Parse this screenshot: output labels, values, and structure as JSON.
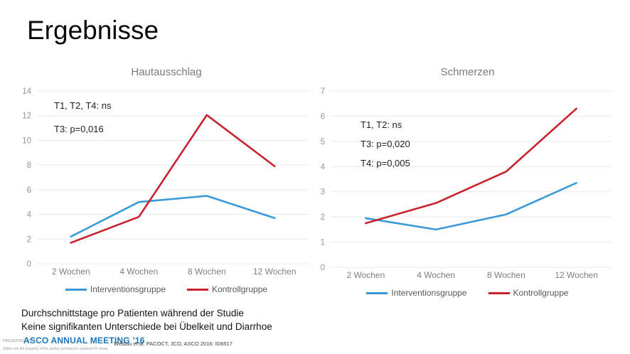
{
  "slide": {
    "title": "Ergebnisse",
    "notes": [
      "Durchschnittstage pro Patienten während der Studie",
      "Keine signifikanten Unterschiede bei Übelkeit und Diarrhoe"
    ]
  },
  "footer": {
    "presented_at_label": "PRESENTED AT:",
    "meeting_name": "ASCO ANNUAL MEETING ’16",
    "disclaimer": "Slides are the property of the author, permission required for reuse.",
    "citation": "Weldau et al. PACOCT, JCO, ASCO 2016: ID6517"
  },
  "colors": {
    "intervention_blue": "#3A9AD9",
    "kontroll_red": "#C8232F",
    "chart_title_gray": "#7C7C7C",
    "axis_label_gray": "#969696",
    "x_label_gray": "#7F7F7F",
    "gridline_gray": "#E9E9E9",
    "asco_blue": "#1B75BC"
  },
  "chart_data": [
    {
      "type": "line",
      "title": "Hautausschlag",
      "categories": [
        "2 Wochen",
        "4 Wochen",
        "8 Wochen",
        "12 Wochen"
      ],
      "series": [
        {
          "name": "Interventionsgruppe",
          "color": "#3A9AD9",
          "values": [
            2.2,
            5.0,
            5.5,
            3.7
          ]
        },
        {
          "name": "Kontrollgruppe",
          "color": "#C8232F",
          "values": [
            1.7,
            3.8,
            12.05,
            7.9
          ]
        }
      ],
      "xlabel": "",
      "ylabel": "",
      "ylim": [
        0,
        14
      ],
      "ytick_step": 2,
      "grid": true,
      "legend_position": "bottom",
      "annotations": [
        "T1, T2, T4: ns",
        "T3: p=0,016"
      ]
    },
    {
      "type": "line",
      "title": "Schmerzen",
      "categories": [
        "2 Wochen",
        "4 Wochen",
        "8 Wochen",
        "12 Wochen"
      ],
      "series": [
        {
          "name": "Interventionsgruppe",
          "color": "#3A9AD9",
          "values": [
            1.95,
            1.5,
            2.1,
            3.35
          ]
        },
        {
          "name": "Kontrollgruppe",
          "color": "#C8232F",
          "values": [
            1.75,
            2.55,
            3.8,
            6.3
          ]
        }
      ],
      "xlabel": "",
      "ylabel": "",
      "ylim": [
        0,
        7
      ],
      "ytick_step": 1,
      "grid": true,
      "legend_position": "bottom",
      "annotations": [
        "T1, T2: ns",
        "T3: p=0,020",
        "T4: p=0,005"
      ]
    }
  ]
}
